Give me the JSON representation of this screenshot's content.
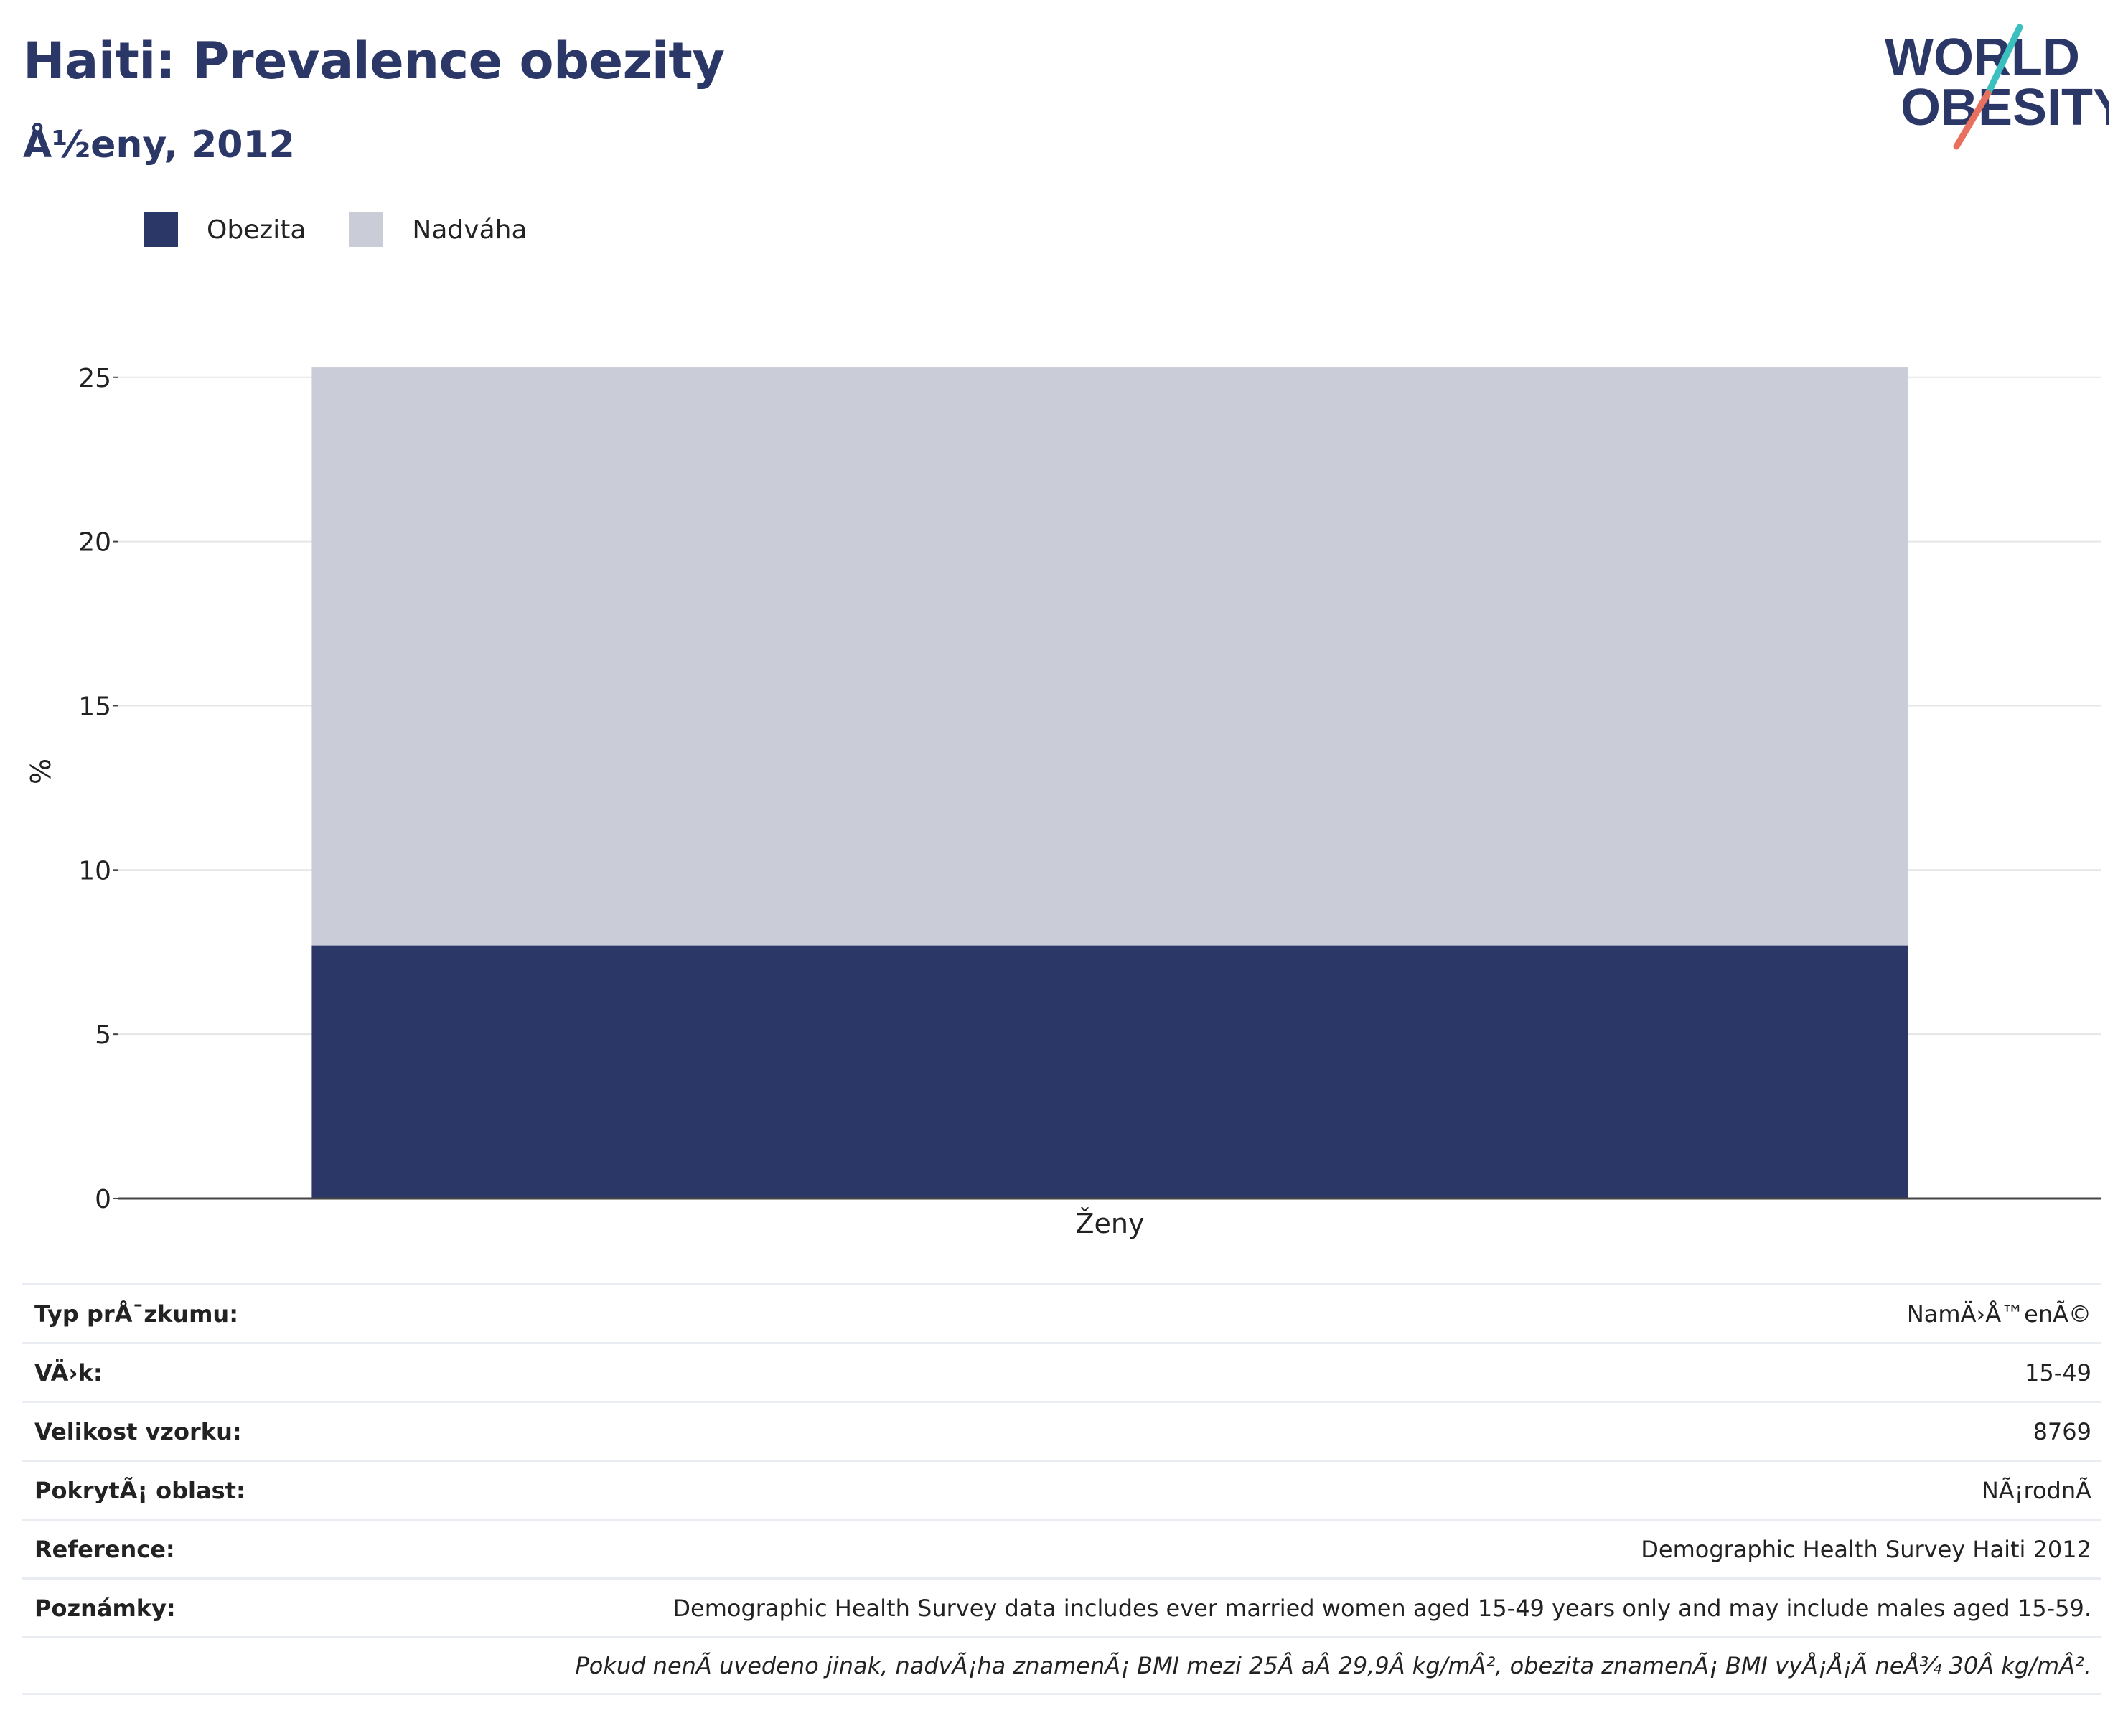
{
  "header": {
    "title": "Haiti: Prevalence obezity",
    "subtitle": "Å½eny, 2012"
  },
  "logo": {
    "line1": "WORLD",
    "line2": "OBESITY"
  },
  "colors": {
    "obesity": "#2b3766",
    "overweight": "#cacdd8",
    "title": "#2b3766",
    "logo_teal": "#3bbfbf",
    "logo_coral": "#e8705f"
  },
  "chart_data": {
    "type": "bar",
    "stacked": true,
    "categories": [
      "Ženy"
    ],
    "series": [
      {
        "name": "Obezita",
        "values": [
          7.7
        ]
      },
      {
        "name": "Nadváha",
        "values": [
          17.6
        ]
      }
    ],
    "ylabel": "%",
    "xlabel": "",
    "ylim": [
      0,
      26
    ],
    "yticks": [
      0,
      5,
      10,
      15,
      20,
      25
    ],
    "grid": true,
    "legend": "top-left"
  },
  "info": {
    "rows": [
      {
        "key": "Typ prÅ¯zkumu:",
        "value": "NamÄ›Å™enÃ©"
      },
      {
        "key": "VÄ›k:",
        "value": "15-49"
      },
      {
        "key": "Velikost vzorku:",
        "value": "8769"
      },
      {
        "key": "PokrytÃ¡ oblast:",
        "value": "NÃ¡rodnÃ"
      },
      {
        "key": "Reference:",
        "value": "Demographic Health Survey Haiti 2012"
      },
      {
        "key": "Poznámky:",
        "value": "Demographic Health Survey data includes ever married women aged 15-49 years only and may include males aged 15-59."
      }
    ],
    "footnote": "Pokud nenÃ uvedeno jinak, nadvÃ¡ha znamenÃ¡ BMI mezi 25Â aÂ 29,9Â kg/mÂ², obezita znamenÃ¡ BMI vyÅ¡Å¡Ã neÅ¾ 30Â kg/mÂ²."
  }
}
